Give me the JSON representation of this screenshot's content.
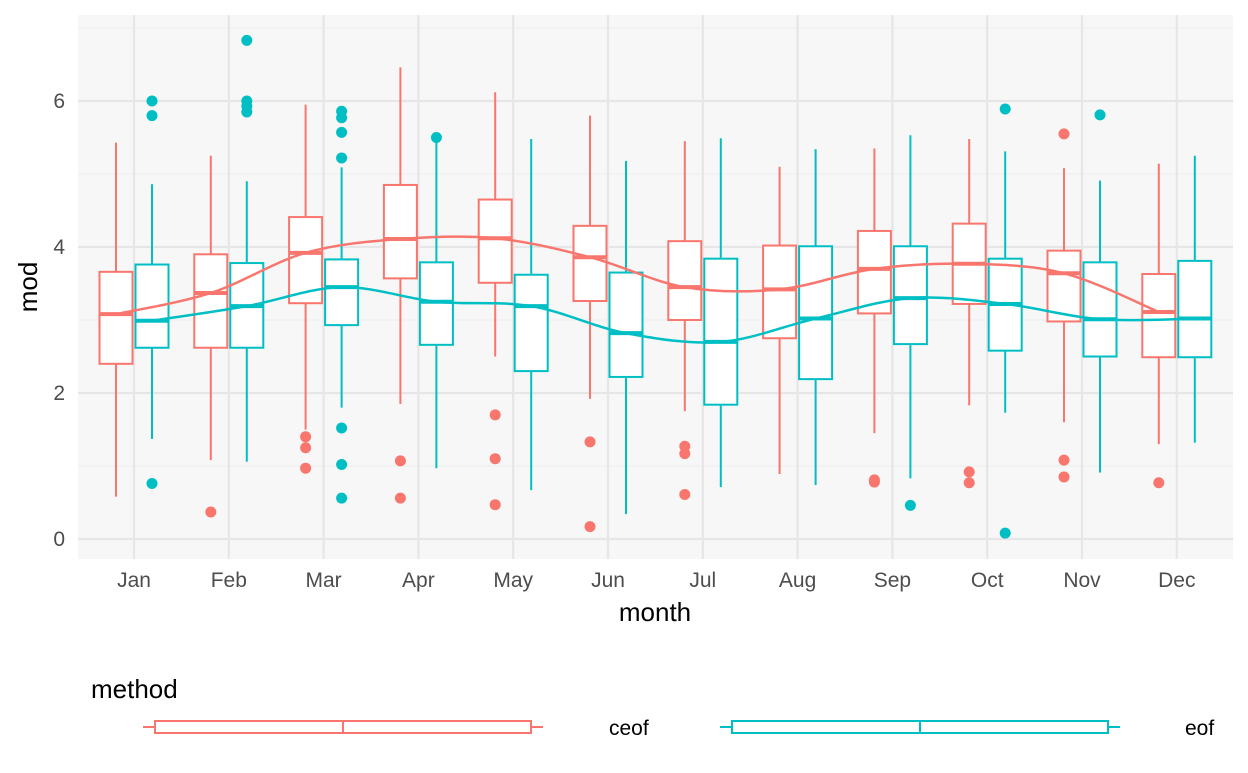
{
  "chart_data": {
    "type": "boxplot",
    "xlabel": "month",
    "ylabel": "mod",
    "ylim": [
      -0.3,
      7.1
    ],
    "yticks": [
      0,
      2,
      4,
      6
    ],
    "grid": true,
    "legend_position": "bottom",
    "legend_title": "method",
    "categories": [
      "Jan",
      "Feb",
      "Mar",
      "Apr",
      "May",
      "Jun",
      "Jul",
      "Aug",
      "Sep",
      "Oct",
      "Nov",
      "Dec"
    ],
    "series": [
      {
        "name": "ceof",
        "color": "#F8766D",
        "boxes": [
          {
            "lower_whisker": 0.58,
            "q1": 2.4,
            "median": 3.08,
            "q3": 3.66,
            "upper_whisker": 5.43,
            "outliers": []
          },
          {
            "lower_whisker": 1.08,
            "q1": 2.62,
            "median": 3.37,
            "q3": 3.9,
            "upper_whisker": 5.25,
            "outliers": [
              0.37
            ]
          },
          {
            "lower_whisker": 1.5,
            "q1": 3.23,
            "median": 3.92,
            "q3": 4.41,
            "upper_whisker": 5.95,
            "outliers": [
              1.4,
              1.25,
              0.97
            ]
          },
          {
            "lower_whisker": 1.85,
            "q1": 3.57,
            "median": 4.11,
            "q3": 4.85,
            "upper_whisker": 6.46,
            "outliers": [
              1.07,
              0.56
            ]
          },
          {
            "lower_whisker": 2.5,
            "q1": 3.51,
            "median": 4.12,
            "q3": 4.65,
            "upper_whisker": 6.12,
            "outliers": [
              1.7,
              1.1,
              0.47
            ]
          },
          {
            "lower_whisker": 1.92,
            "q1": 3.26,
            "median": 3.86,
            "q3": 4.29,
            "upper_whisker": 5.8,
            "outliers": [
              1.33,
              0.17
            ]
          },
          {
            "lower_whisker": 1.75,
            "q1": 3.0,
            "median": 3.45,
            "q3": 4.08,
            "upper_whisker": 5.45,
            "outliers": [
              1.27,
              1.17,
              0.61
            ]
          },
          {
            "lower_whisker": 0.89,
            "q1": 2.75,
            "median": 3.42,
            "q3": 4.02,
            "upper_whisker": 5.1,
            "outliers": []
          },
          {
            "lower_whisker": 1.45,
            "q1": 3.09,
            "median": 3.7,
            "q3": 4.22,
            "upper_whisker": 5.35,
            "outliers": [
              0.81,
              0.78
            ]
          },
          {
            "lower_whisker": 1.83,
            "q1": 3.22,
            "median": 3.77,
            "q3": 4.32,
            "upper_whisker": 5.48,
            "outliers": [
              0.92,
              0.77
            ]
          },
          {
            "lower_whisker": 1.6,
            "q1": 2.98,
            "median": 3.64,
            "q3": 3.95,
            "upper_whisker": 5.08,
            "outliers": [
              5.55,
              1.08,
              0.85
            ]
          },
          {
            "lower_whisker": 1.3,
            "q1": 2.49,
            "median": 3.11,
            "q3": 3.63,
            "upper_whisker": 5.14,
            "outliers": [
              0.77
            ]
          }
        ]
      },
      {
        "name": "eof",
        "color": "#00BFC4",
        "boxes": [
          {
            "lower_whisker": 1.37,
            "q1": 2.62,
            "median": 2.99,
            "q3": 3.76,
            "upper_whisker": 4.86,
            "outliers": [
              6.0,
              5.8,
              0.76
            ]
          },
          {
            "lower_whisker": 1.06,
            "q1": 2.62,
            "median": 3.19,
            "q3": 3.78,
            "upper_whisker": 4.9,
            "outliers": [
              6.83,
              6.0,
              5.93,
              5.85
            ]
          },
          {
            "lower_whisker": 1.8,
            "q1": 2.93,
            "median": 3.45,
            "q3": 3.83,
            "upper_whisker": 5.09,
            "outliers": [
              5.86,
              5.77,
              5.57,
              5.22,
              1.52,
              1.02,
              0.56
            ]
          },
          {
            "lower_whisker": 0.97,
            "q1": 2.66,
            "median": 3.25,
            "q3": 3.79,
            "upper_whisker": 5.49,
            "outliers": [
              5.5
            ]
          },
          {
            "lower_whisker": 0.67,
            "q1": 2.3,
            "median": 3.19,
            "q3": 3.62,
            "upper_whisker": 5.48,
            "outliers": []
          },
          {
            "lower_whisker": 0.34,
            "q1": 2.22,
            "median": 2.82,
            "q3": 3.65,
            "upper_whisker": 5.18,
            "outliers": []
          },
          {
            "lower_whisker": 0.71,
            "q1": 1.84,
            "median": 2.7,
            "q3": 3.84,
            "upper_whisker": 5.49,
            "outliers": []
          },
          {
            "lower_whisker": 0.74,
            "q1": 2.19,
            "median": 3.02,
            "q3": 4.01,
            "upper_whisker": 5.34,
            "outliers": []
          },
          {
            "lower_whisker": 0.83,
            "q1": 2.67,
            "median": 3.3,
            "q3": 4.01,
            "upper_whisker": 5.53,
            "outliers": [
              0.46
            ]
          },
          {
            "lower_whisker": 1.73,
            "q1": 2.58,
            "median": 3.22,
            "q3": 3.84,
            "upper_whisker": 5.31,
            "outliers": [
              5.89,
              0.08
            ]
          },
          {
            "lower_whisker": 0.91,
            "q1": 2.5,
            "median": 3.01,
            "q3": 3.79,
            "upper_whisker": 4.91,
            "outliers": [
              5.81
            ]
          },
          {
            "lower_whisker": 1.32,
            "q1": 2.49,
            "median": 3.02,
            "q3": 3.81,
            "upper_whisker": 5.25,
            "outliers": []
          }
        ]
      }
    ]
  }
}
